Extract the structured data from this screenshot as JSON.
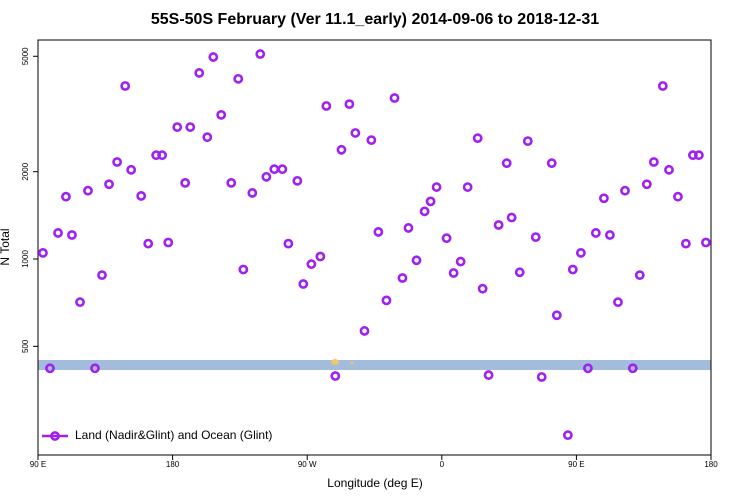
{
  "chart_data": {
    "type": "scatter",
    "title": "55S-50S February (Ver 11.1_early)   2014-09-06 to 2018-12-31",
    "x_label": "Longitude (deg E)",
    "y_label": "N Total",
    "log_y": true,
    "legend": "lower left",
    "xlim": [
      90,
      540
    ],
    "xticks": [
      {
        "value": 90,
        "label": "90 E"
      },
      180,
      {
        "value": 270,
        "label": "90 W"
      },
      {
        "value": 360,
        "label": "0"
      },
      {
        "value": 450,
        "label": "90 E"
      },
      {
        "value": 540,
        "label": "180"
      }
    ],
    "ylim": [
      211,
      5690
    ],
    "yticks": [
      500,
      1000,
      2000,
      5000
    ],
    "series": [
      {
        "name": "Land (Nadir&Glint) and Ocean (Glint)",
        "color": "#a020f0",
        "x": [
          93.3,
          98.0,
          103.4,
          108.7,
          112.7,
          118.1,
          123.4,
          128.1,
          132.8,
          137.5,
          142.9,
          148.3,
          152.3,
          159.0,
          163.7,
          169.0,
          173.0,
          177.1,
          183.1,
          188.4,
          191.8,
          197.8,
          203.2,
          207.2,
          212.5,
          219.2,
          223.9,
          227.3,
          233.3,
          238.6,
          242.7,
          248.0,
          253.4,
          257.4,
          263.4,
          267.4,
          272.8,
          278.8,
          282.8,
          288.8,
          292.9,
          298.2,
          302.2,
          308.3,
          312.9,
          317.6,
          323.0,
          328.4,
          333.7,
          337.7,
          343.1,
          348.5,
          352.5,
          356.5,
          363.2,
          367.9,
          372.6,
          377.3,
          384.0,
          387.3,
          391.3,
          398.0,
          403.4,
          406.7,
          412.1,
          417.5,
          422.8,
          426.8,
          433.5,
          436.9,
          444.3,
          447.6,
          453.0,
          457.7,
          463.0,
          468.4,
          472.4,
          477.8,
          482.5,
          487.7,
          492.4,
          497.1,
          501.8,
          507.8,
          511.9,
          517.9,
          523.2,
          527.9,
          531.9,
          536.6
        ],
        "values": [
          1050,
          420,
          1230,
          1640,
          1210,
          710,
          1720,
          420,
          880,
          1810,
          2160,
          3950,
          2030,
          1650,
          1130,
          2280,
          2280,
          1140,
          2850,
          1830,
          2850,
          4380,
          2630,
          4970,
          3140,
          1830,
          4180,
          920,
          1690,
          5090,
          1920,
          2040,
          2040,
          1130,
          1860,
          820,
          960,
          1020,
          3370,
          395,
          2380,
          3420,
          2720,
          565,
          2570,
          1240,
          720,
          3590,
          860,
          1280,
          990,
          1460,
          1580,
          1770,
          1180,
          895,
          980,
          1770,
          2610,
          790,
          398,
          1310,
          2140,
          1390,
          900,
          2550,
          1190,
          392,
          2140,
          640,
          247,
          920,
          1050,
          420,
          1230,
          1620,
          1210,
          710,
          1720,
          420,
          880,
          1810,
          2160,
          3950,
          2030,
          1640,
          1130,
          2280,
          2280,
          1140
        ]
      }
    ]
  }
}
